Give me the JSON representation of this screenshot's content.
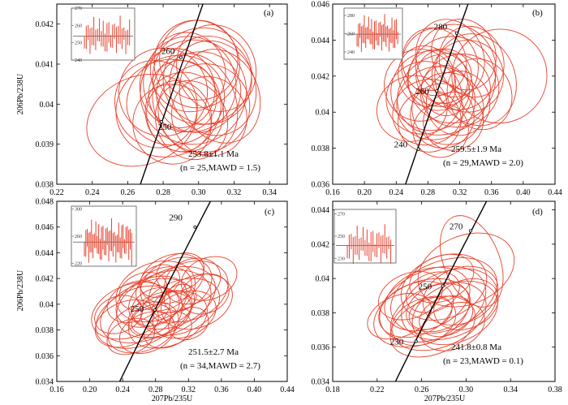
{
  "figure_colors": {
    "ellipse": "#e8412c",
    "concordia": "#000000",
    "inset_bar": "#e8412c"
  },
  "chart_data": [
    {
      "type": "scatter",
      "panel_label": "(a)",
      "xlim": [
        0.22,
        0.35
      ],
      "ylim": [
        0.038,
        0.0425
      ],
      "xticks": [
        0.22,
        0.24,
        0.26,
        0.28,
        0.3,
        0.32,
        0.34
      ],
      "yticks": [
        0.038,
        0.039,
        0.04,
        0.041,
        0.042
      ],
      "xlabel": "",
      "ylabel": "206Pb/238U",
      "concordia_points": [
        {
          "age": 250,
          "x": 0.279,
          "y": 0.03956
        },
        {
          "age": 260,
          "x": 0.29,
          "y": 0.04117
        }
      ],
      "concordia_ages": [
        220,
        310
      ],
      "result_line1": "253.8±1.1 Ma",
      "result_line2": "(n = 25,MAWD = 1.5)",
      "inset": {
        "yticks": [
          240,
          250,
          260,
          270
        ],
        "ymin": 240,
        "ymax": 270,
        "mean": 253.8
      },
      "ellipses": [
        {
          "x": 0.287,
          "y": 0.0401,
          "sx": 0.028,
          "sy": 0.0011
        },
        {
          "x": 0.295,
          "y": 0.0405,
          "sx": 0.026,
          "sy": 0.0012
        },
        {
          "x": 0.3,
          "y": 0.0403,
          "sx": 0.024,
          "sy": 0.001
        },
        {
          "x": 0.283,
          "y": 0.0399,
          "sx": 0.03,
          "sy": 0.0012
        },
        {
          "x": 0.292,
          "y": 0.0398,
          "sx": 0.022,
          "sy": 0.001
        },
        {
          "x": 0.305,
          "y": 0.0406,
          "sx": 0.025,
          "sy": 0.0011
        },
        {
          "x": 0.298,
          "y": 0.04,
          "sx": 0.023,
          "sy": 0.0013
        },
        {
          "x": 0.288,
          "y": 0.0404,
          "sx": 0.021,
          "sy": 0.001
        },
        {
          "x": 0.31,
          "y": 0.0409,
          "sx": 0.022,
          "sy": 0.0011
        },
        {
          "x": 0.302,
          "y": 0.0407,
          "sx": 0.028,
          "sy": 0.0012
        },
        {
          "x": 0.296,
          "y": 0.0396,
          "sx": 0.02,
          "sy": 0.001
        },
        {
          "x": 0.28,
          "y": 0.0403,
          "sx": 0.025,
          "sy": 0.0011
        },
        {
          "x": 0.308,
          "y": 0.0404,
          "sx": 0.024,
          "sy": 0.0012
        },
        {
          "x": 0.291,
          "y": 0.0402,
          "sx": 0.019,
          "sy": 0.0009
        },
        {
          "x": 0.299,
          "y": 0.041,
          "sx": 0.024,
          "sy": 0.0011
        },
        {
          "x": 0.285,
          "y": 0.0395,
          "sx": 0.022,
          "sy": 0.001
        },
        {
          "x": 0.303,
          "y": 0.0399,
          "sx": 0.026,
          "sy": 0.0011
        },
        {
          "x": 0.294,
          "y": 0.0408,
          "sx": 0.021,
          "sy": 0.001
        },
        {
          "x": 0.276,
          "y": 0.04,
          "sx": 0.023,
          "sy": 0.0011
        },
        {
          "x": 0.312,
          "y": 0.0402,
          "sx": 0.022,
          "sy": 0.0012
        },
        {
          "x": 0.297,
          "y": 0.0403,
          "sx": 0.03,
          "sy": 0.0013
        },
        {
          "x": 0.289,
          "y": 0.0397,
          "sx": 0.018,
          "sy": 0.0009
        },
        {
          "x": 0.3,
          "y": 0.0411,
          "sx": 0.022,
          "sy": 0.001
        },
        {
          "x": 0.268,
          "y": 0.0396,
          "sx": 0.032,
          "sy": 0.0011
        },
        {
          "x": 0.306,
          "y": 0.0397,
          "sx": 0.021,
          "sy": 0.001
        }
      ]
    },
    {
      "type": "scatter",
      "panel_label": "(b)",
      "xlim": [
        0.16,
        0.44
      ],
      "ylim": [
        0.036,
        0.046
      ],
      "xticks": [
        0.16,
        0.2,
        0.24,
        0.28,
        0.32,
        0.36,
        0.4,
        0.44
      ],
      "yticks": [
        0.036,
        0.038,
        0.04,
        0.042,
        0.044,
        0.046
      ],
      "xlabel": "",
      "ylabel": "",
      "concordia_points": [
        {
          "age": 240,
          "x": 0.268,
          "y": 0.03795
        },
        {
          "age": 260,
          "x": 0.291,
          "y": 0.04117
        },
        {
          "age": 280,
          "x": 0.316,
          "y": 0.04439
        }
      ],
      "concordia_ages": [
        225,
        300
      ],
      "result_line1": "259.5±1.9 Ma",
      "result_line2": "(n = 29,MAWD = 2.0)",
      "inset": {
        "yticks": [
          240,
          260,
          280
        ],
        "ymin": 232,
        "ymax": 288,
        "mean": 259.5
      },
      "ellipses": [
        {
          "x": 0.3,
          "y": 0.041,
          "sx": 0.06,
          "sy": 0.0022
        },
        {
          "x": 0.29,
          "y": 0.0405,
          "sx": 0.05,
          "sy": 0.002
        },
        {
          "x": 0.31,
          "y": 0.0418,
          "sx": 0.055,
          "sy": 0.0024
        },
        {
          "x": 0.28,
          "y": 0.04,
          "sx": 0.045,
          "sy": 0.0018
        },
        {
          "x": 0.32,
          "y": 0.0412,
          "sx": 0.05,
          "sy": 0.002
        },
        {
          "x": 0.295,
          "y": 0.0425,
          "sx": 0.048,
          "sy": 0.0022
        },
        {
          "x": 0.305,
          "y": 0.0402,
          "sx": 0.045,
          "sy": 0.002
        },
        {
          "x": 0.285,
          "y": 0.0412,
          "sx": 0.052,
          "sy": 0.0022
        },
        {
          "x": 0.315,
          "y": 0.0425,
          "sx": 0.05,
          "sy": 0.0024
        },
        {
          "x": 0.298,
          "y": 0.0398,
          "sx": 0.04,
          "sy": 0.0018
        },
        {
          "x": 0.33,
          "y": 0.042,
          "sx": 0.045,
          "sy": 0.002
        },
        {
          "x": 0.275,
          "y": 0.0408,
          "sx": 0.048,
          "sy": 0.002
        },
        {
          "x": 0.308,
          "y": 0.043,
          "sx": 0.042,
          "sy": 0.0022
        },
        {
          "x": 0.292,
          "y": 0.0418,
          "sx": 0.038,
          "sy": 0.0017
        },
        {
          "x": 0.34,
          "y": 0.0418,
          "sx": 0.05,
          "sy": 0.0026
        },
        {
          "x": 0.282,
          "y": 0.0395,
          "sx": 0.04,
          "sy": 0.0017
        },
        {
          "x": 0.318,
          "y": 0.0405,
          "sx": 0.04,
          "sy": 0.0018
        },
        {
          "x": 0.3,
          "y": 0.042,
          "sx": 0.035,
          "sy": 0.0015
        },
        {
          "x": 0.27,
          "y": 0.0415,
          "sx": 0.045,
          "sy": 0.002
        },
        {
          "x": 0.312,
          "y": 0.0395,
          "sx": 0.038,
          "sy": 0.0016
        },
        {
          "x": 0.325,
          "y": 0.0432,
          "sx": 0.04,
          "sy": 0.002
        },
        {
          "x": 0.288,
          "y": 0.0428,
          "sx": 0.04,
          "sy": 0.0019
        },
        {
          "x": 0.302,
          "y": 0.0412,
          "sx": 0.03,
          "sy": 0.0014
        },
        {
          "x": 0.26,
          "y": 0.0402,
          "sx": 0.045,
          "sy": 0.0018
        },
        {
          "x": 0.345,
          "y": 0.041,
          "sx": 0.04,
          "sy": 0.002
        },
        {
          "x": 0.296,
          "y": 0.039,
          "sx": 0.035,
          "sy": 0.0015
        },
        {
          "x": 0.335,
          "y": 0.0428,
          "sx": 0.04,
          "sy": 0.002
        },
        {
          "x": 0.278,
          "y": 0.042,
          "sx": 0.035,
          "sy": 0.0017
        },
        {
          "x": 0.37,
          "y": 0.042,
          "sx": 0.06,
          "sy": 0.0026
        }
      ]
    },
    {
      "type": "scatter",
      "panel_label": "(c)",
      "xlim": [
        0.16,
        0.44
      ],
      "ylim": [
        0.034,
        0.048
      ],
      "xticks": [
        0.16,
        0.2,
        0.24,
        0.28,
        0.32,
        0.36,
        0.4,
        0.44
      ],
      "yticks": [
        0.034,
        0.036,
        0.038,
        0.04,
        0.042,
        0.044,
        0.046,
        0.048
      ],
      "xlabel": "207Pb/235U",
      "ylabel": "206Pb/238U",
      "concordia_points": [
        {
          "age": 250,
          "x": 0.279,
          "y": 0.03956
        },
        {
          "age": 290,
          "x": 0.328,
          "y": 0.046
        }
      ],
      "concordia_ages": [
        210,
        305
      ],
      "result_line1": "251.5±2.7 Ma",
      "result_line2": "(n = 34,MAWD = 2.7)",
      "inset": {
        "yticks": [
          220,
          260,
          300
        ],
        "ymin": 216,
        "ymax": 304,
        "mean": 251.5
      },
      "ellipses": [
        {
          "x": 0.27,
          "y": 0.0395,
          "sx": 0.06,
          "sy": 0.0022
        },
        {
          "x": 0.29,
          "y": 0.04,
          "sx": 0.06,
          "sy": 0.0024
        },
        {
          "x": 0.3,
          "y": 0.0405,
          "sx": 0.055,
          "sy": 0.0022
        },
        {
          "x": 0.26,
          "y": 0.039,
          "sx": 0.055,
          "sy": 0.0022
        },
        {
          "x": 0.31,
          "y": 0.0398,
          "sx": 0.05,
          "sy": 0.002
        },
        {
          "x": 0.28,
          "y": 0.041,
          "sx": 0.05,
          "sy": 0.0022
        },
        {
          "x": 0.25,
          "y": 0.0395,
          "sx": 0.05,
          "sy": 0.002
        },
        {
          "x": 0.32,
          "y": 0.041,
          "sx": 0.05,
          "sy": 0.0022
        },
        {
          "x": 0.295,
          "y": 0.0388,
          "sx": 0.05,
          "sy": 0.002
        },
        {
          "x": 0.275,
          "y": 0.0402,
          "sx": 0.045,
          "sy": 0.0018
        },
        {
          "x": 0.305,
          "y": 0.0415,
          "sx": 0.045,
          "sy": 0.002
        },
        {
          "x": 0.265,
          "y": 0.0382,
          "sx": 0.045,
          "sy": 0.0018
        },
        {
          "x": 0.33,
          "y": 0.0402,
          "sx": 0.045,
          "sy": 0.002
        },
        {
          "x": 0.285,
          "y": 0.0392,
          "sx": 0.04,
          "sy": 0.0016
        },
        {
          "x": 0.3,
          "y": 0.042,
          "sx": 0.04,
          "sy": 0.0018
        },
        {
          "x": 0.245,
          "y": 0.0385,
          "sx": 0.04,
          "sy": 0.0017
        },
        {
          "x": 0.315,
          "y": 0.0392,
          "sx": 0.04,
          "sy": 0.0017
        },
        {
          "x": 0.29,
          "y": 0.0412,
          "sx": 0.035,
          "sy": 0.0016
        },
        {
          "x": 0.27,
          "y": 0.0378,
          "sx": 0.035,
          "sy": 0.0015
        },
        {
          "x": 0.325,
          "y": 0.0418,
          "sx": 0.035,
          "sy": 0.0017
        },
        {
          "x": 0.28,
          "y": 0.0398,
          "sx": 0.03,
          "sy": 0.0014
        },
        {
          "x": 0.255,
          "y": 0.0402,
          "sx": 0.035,
          "sy": 0.0015
        },
        {
          "x": 0.31,
          "y": 0.0425,
          "sx": 0.03,
          "sy": 0.0014
        },
        {
          "x": 0.295,
          "y": 0.038,
          "sx": 0.03,
          "sy": 0.0013
        },
        {
          "x": 0.34,
          "y": 0.0408,
          "sx": 0.03,
          "sy": 0.0015
        },
        {
          "x": 0.265,
          "y": 0.041,
          "sx": 0.03,
          "sy": 0.0014
        },
        {
          "x": 0.235,
          "y": 0.0392,
          "sx": 0.03,
          "sy": 0.0014
        },
        {
          "x": 0.3,
          "y": 0.0398,
          "sx": 0.025,
          "sy": 0.0012
        },
        {
          "x": 0.285,
          "y": 0.0418,
          "sx": 0.025,
          "sy": 0.0012
        },
        {
          "x": 0.32,
          "y": 0.0385,
          "sx": 0.025,
          "sy": 0.0012
        },
        {
          "x": 0.275,
          "y": 0.0388,
          "sx": 0.025,
          "sy": 0.0011
        },
        {
          "x": 0.345,
          "y": 0.042,
          "sx": 0.035,
          "sy": 0.0016
        },
        {
          "x": 0.25,
          "y": 0.0375,
          "sx": 0.03,
          "sy": 0.0013
        },
        {
          "x": 0.31,
          "y": 0.0405,
          "sx": 0.02,
          "sy": 0.001
        }
      ]
    },
    {
      "type": "scatter",
      "panel_label": "(d)",
      "xlim": [
        0.18,
        0.38
      ],
      "ylim": [
        0.034,
        0.0445
      ],
      "xticks": [
        0.18,
        0.22,
        0.26,
        0.3,
        0.34,
        0.38
      ],
      "yticks": [
        0.034,
        0.036,
        0.038,
        0.04,
        0.042,
        0.044
      ],
      "xlabel": "207Pb/235U",
      "ylabel": "",
      "concordia_points": [
        {
          "age": 230,
          "x": 0.255,
          "y": 0.03634
        },
        {
          "age": 250,
          "x": 0.279,
          "y": 0.03956
        },
        {
          "age": 270,
          "x": 0.304,
          "y": 0.04278
        }
      ],
      "concordia_ages": [
        215,
        285
      ],
      "result_line1": "241.8±0.8 Ma",
      "result_line2": "(n = 23,MAWD = 0.1)",
      "inset": {
        "yticks": [
          230,
          250,
          270
        ],
        "ymin": 226,
        "ymax": 274,
        "mean": 241.8
      },
      "ellipses": [
        {
          "x": 0.27,
          "y": 0.0385,
          "sx": 0.05,
          "sy": 0.002
        },
        {
          "x": 0.28,
          "y": 0.039,
          "sx": 0.05,
          "sy": 0.002
        },
        {
          "x": 0.26,
          "y": 0.038,
          "sx": 0.045,
          "sy": 0.0018
        },
        {
          "x": 0.275,
          "y": 0.0378,
          "sx": 0.045,
          "sy": 0.0018
        },
        {
          "x": 0.285,
          "y": 0.0385,
          "sx": 0.045,
          "sy": 0.0019
        },
        {
          "x": 0.265,
          "y": 0.0388,
          "sx": 0.04,
          "sy": 0.0017
        },
        {
          "x": 0.29,
          "y": 0.038,
          "sx": 0.04,
          "sy": 0.0017
        },
        {
          "x": 0.27,
          "y": 0.0372,
          "sx": 0.04,
          "sy": 0.0016
        },
        {
          "x": 0.28,
          "y": 0.0395,
          "sx": 0.04,
          "sy": 0.0018
        },
        {
          "x": 0.255,
          "y": 0.0382,
          "sx": 0.035,
          "sy": 0.0015
        },
        {
          "x": 0.295,
          "y": 0.039,
          "sx": 0.035,
          "sy": 0.0016
        },
        {
          "x": 0.275,
          "y": 0.0383,
          "sx": 0.03,
          "sy": 0.0013
        },
        {
          "x": 0.262,
          "y": 0.0375,
          "sx": 0.03,
          "sy": 0.0013
        },
        {
          "x": 0.288,
          "y": 0.0372,
          "sx": 0.03,
          "sy": 0.0013
        },
        {
          "x": 0.278,
          "y": 0.04,
          "sx": 0.03,
          "sy": 0.0013
        },
        {
          "x": 0.3,
          "y": 0.0385,
          "sx": 0.03,
          "sy": 0.0014
        },
        {
          "x": 0.25,
          "y": 0.039,
          "sx": 0.03,
          "sy": 0.0013
        },
        {
          "x": 0.27,
          "y": 0.0392,
          "sx": 0.025,
          "sy": 0.0011
        },
        {
          "x": 0.282,
          "y": 0.0378,
          "sx": 0.025,
          "sy": 0.0011
        },
        {
          "x": 0.3,
          "y": 0.0405,
          "sx": 0.045,
          "sy": 0.002
        },
        {
          "x": 0.305,
          "y": 0.041,
          "sx": 0.025,
          "sy": 0.0028
        },
        {
          "x": 0.24,
          "y": 0.0378,
          "sx": 0.03,
          "sy": 0.0012
        },
        {
          "x": 0.268,
          "y": 0.038,
          "sx": 0.02,
          "sy": 0.0009
        }
      ]
    }
  ]
}
